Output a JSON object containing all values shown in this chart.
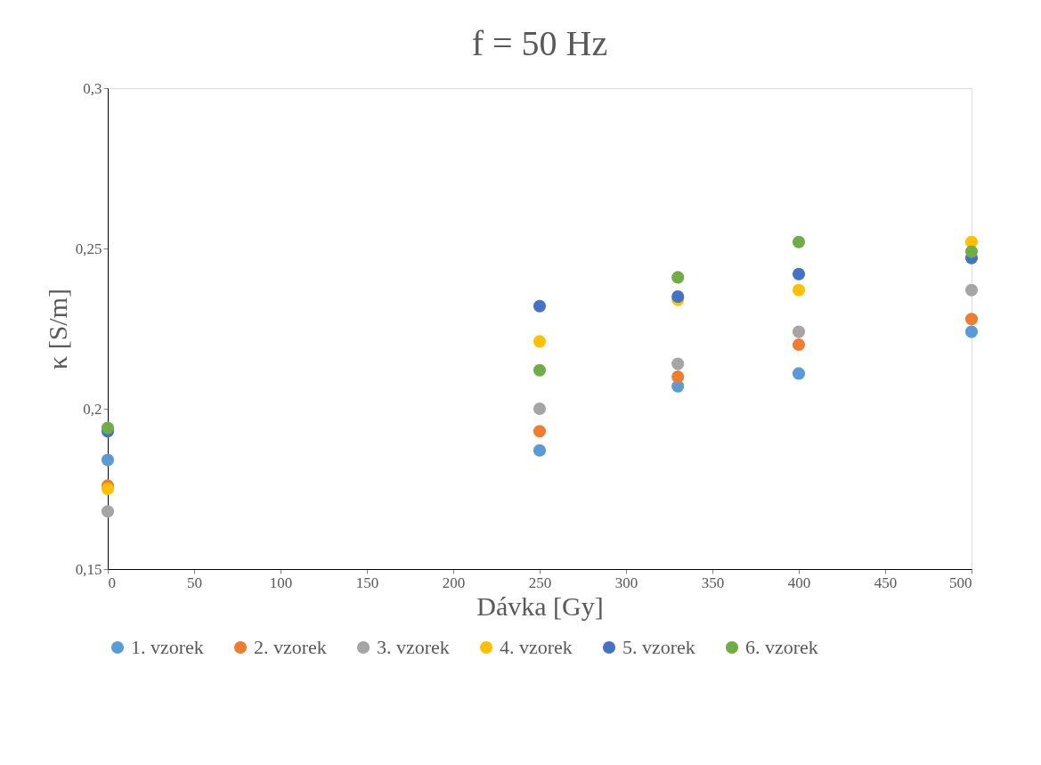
{
  "chart_data": {
    "type": "scatter",
    "title": "f = 50 Hz",
    "xlabel": "Dávka [Gy]",
    "ylabel": "κ [S/m]",
    "x": [
      0,
      250,
      330,
      400,
      500
    ],
    "series": [
      {
        "name": "1. vzorek",
        "color": "#5b9bd5",
        "values": [
          0.184,
          0.187,
          0.207,
          0.211,
          0.224
        ]
      },
      {
        "name": "2. vzorek",
        "color": "#ed7d31",
        "values": [
          0.176,
          0.193,
          0.21,
          0.22,
          0.228
        ]
      },
      {
        "name": "3. vzorek",
        "color": "#a5a5a5",
        "values": [
          0.168,
          0.2,
          0.214,
          0.224,
          0.237
        ]
      },
      {
        "name": "4. vzorek",
        "color": "#ffc000",
        "values": [
          0.175,
          0.221,
          0.234,
          0.237,
          0.252
        ]
      },
      {
        "name": "5. vzorek",
        "color": "#4472c4",
        "values": [
          0.193,
          0.232,
          0.235,
          0.242,
          0.247
        ]
      },
      {
        "name": "6. vzorek",
        "color": "#70ad47",
        "values": [
          0.194,
          0.212,
          0.241,
          0.252,
          0.249
        ]
      }
    ],
    "xlim": [
      0,
      500
    ],
    "xticks": [
      0,
      50,
      100,
      150,
      200,
      250,
      300,
      350,
      400,
      450,
      500
    ],
    "ylim": [
      0.15,
      0.3
    ],
    "yticks": [
      {
        "value": 0.15,
        "label": "0,15"
      },
      {
        "value": 0.2,
        "label": "0,2"
      },
      {
        "value": 0.25,
        "label": "0,25"
      },
      {
        "value": 0.3,
        "label": "0,3"
      }
    ],
    "grid": false,
    "legend": "bottom",
    "marker": "circle"
  }
}
